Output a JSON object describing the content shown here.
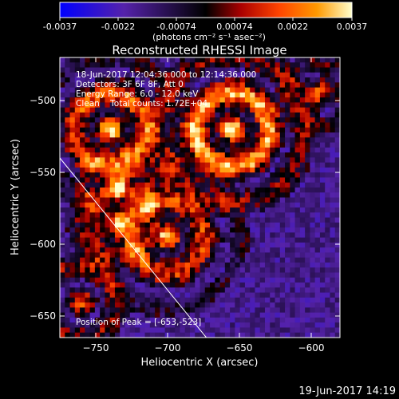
{
  "colorbar": {
    "ticks": [
      "-0.0037",
      "-0.0022",
      "-0.00074",
      "0.00074",
      "0.0022",
      "0.0037"
    ],
    "units_label": "(photons cm⁻² s⁻¹ asec⁻²)"
  },
  "footer": {
    "timestamp": "19-Jun-2017 14:19"
  },
  "chart_data": {
    "type": "heatmap",
    "title": "Reconstructed RHESSI Image",
    "xlabel": "Heliocentric X (arcsec)",
    "ylabel": "Heliocentric Y (arcsec)",
    "xlim": [
      -775,
      -580
    ],
    "ylim": [
      -665,
      -470
    ],
    "xticks": [
      -750,
      -700,
      -650,
      -600
    ],
    "yticks": [
      -500,
      -550,
      -600,
      -650
    ],
    "color_range": [
      -0.0037,
      0.0037
    ],
    "colormap": [
      "#0000ff",
      "#5522aa",
      "#000000",
      "#aa0000",
      "#ff4400",
      "#ff9900",
      "#ffffcc"
    ],
    "annotations": [
      "18-Jun-2017 12:04:36.000 to 12:14:36.000",
      "Detectors: 3F 6F 8F, Att 0",
      "Energy Range: 6.0 - 12.0 keV",
      "Clean    Total counts: 1.72E+04"
    ],
    "peak_label": "Position of Peak = [-653,-523]",
    "peak": [
      -653,
      -523
    ],
    "limb_line": [
      [
        -775,
        -540
      ],
      [
        -673,
        -665
      ]
    ]
  }
}
